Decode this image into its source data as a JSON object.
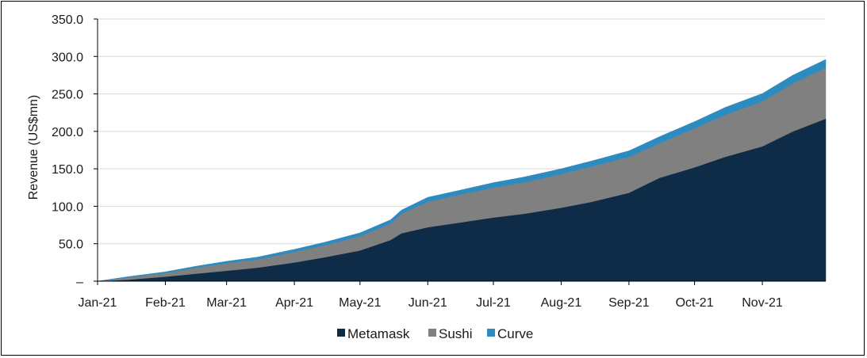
{
  "chart_data": {
    "type": "area",
    "stacked": true,
    "title": "",
    "xlabel": "",
    "ylabel": "Revenue (US$mn)",
    "ylim": [
      0,
      350
    ],
    "yticks": [
      "–",
      "50.0",
      "100.0",
      "150.0",
      "200.0",
      "250.0",
      "300.0",
      "350.0"
    ],
    "xticks": [
      "Jan-21",
      "Feb-21",
      "Mar-21",
      "Apr-21",
      "May-21",
      "Jun-21",
      "Jul-21",
      "Aug-21",
      "Sep-21",
      "Oct-21",
      "Nov-21"
    ],
    "grid": true,
    "legend_position": "bottom",
    "x": [
      "2021-01-01",
      "2021-01-15",
      "2021-02-01",
      "2021-02-15",
      "2021-03-01",
      "2021-03-15",
      "2021-04-01",
      "2021-04-15",
      "2021-05-01",
      "2021-05-15",
      "2021-05-20",
      "2021-06-01",
      "2021-06-15",
      "2021-07-01",
      "2021-07-15",
      "2021-08-01",
      "2021-08-15",
      "2021-09-01",
      "2021-09-08",
      "2021-09-15",
      "2021-10-01",
      "2021-10-15",
      "2021-11-01",
      "2021-11-15",
      "2021-11-30"
    ],
    "series": [
      {
        "name": "Metamask",
        "color": "#0e2c47",
        "values": [
          0,
          2,
          6,
          10,
          14,
          18,
          25,
          32,
          41,
          55,
          64,
          72,
          78,
          85,
          90,
          98,
          106,
          118,
          128,
          138,
          152,
          166,
          180,
          200,
          217
        ]
      },
      {
        "name": "Sushi",
        "color": "#808080",
        "values": [
          0,
          3,
          5,
          8,
          10,
          11,
          14,
          16,
          19,
          22,
          26,
          34,
          37,
          40,
          42,
          45,
          47,
          48,
          47,
          46,
          52,
          56,
          60,
          64,
          68
        ]
      },
      {
        "name": "Curve",
        "color": "#2e8bc0",
        "values": [
          0,
          1,
          1.5,
          2,
          2.5,
          3,
          3.5,
          4,
          4.5,
          5,
          5,
          6,
          6,
          6.5,
          7,
          7,
          7.5,
          8,
          8.5,
          9,
          9,
          10,
          10.5,
          11,
          11
        ]
      }
    ]
  }
}
